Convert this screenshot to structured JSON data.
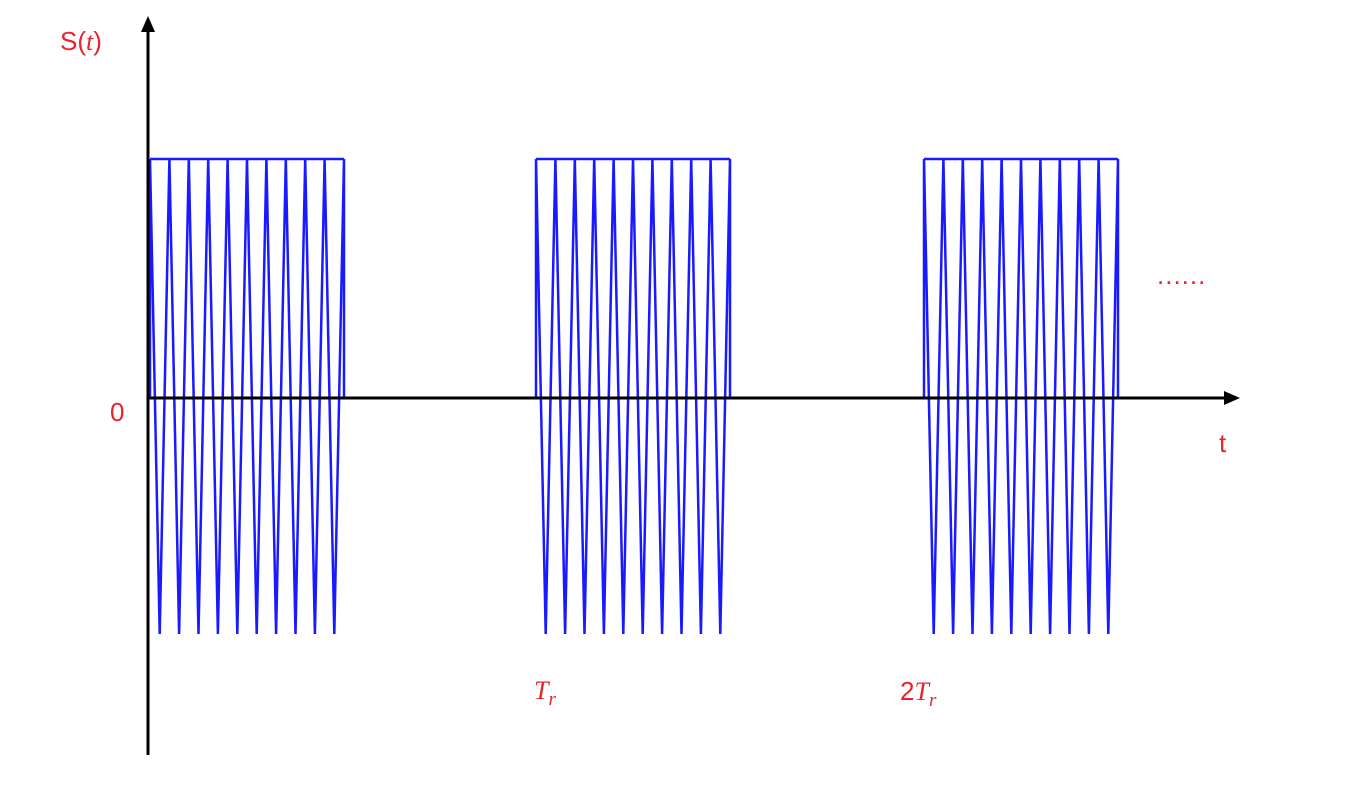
{
  "diagram": {
    "y_axis_label_prefix": "S(",
    "y_axis_label_var": "t",
    "y_axis_label_suffix": ")",
    "origin_label": "0",
    "x_axis_label": "t",
    "period_label_base": "T",
    "period_label_sub": "r",
    "second_period_label_coef": "2",
    "second_period_label_base": "T",
    "second_period_label_sub": "r",
    "continuation_mark": "......",
    "pulse_count": 3,
    "cycles_per_pulse": 10,
    "colors": {
      "waveform": "#1a1aff",
      "axes": "#000000",
      "labels": "#e8232b"
    }
  }
}
